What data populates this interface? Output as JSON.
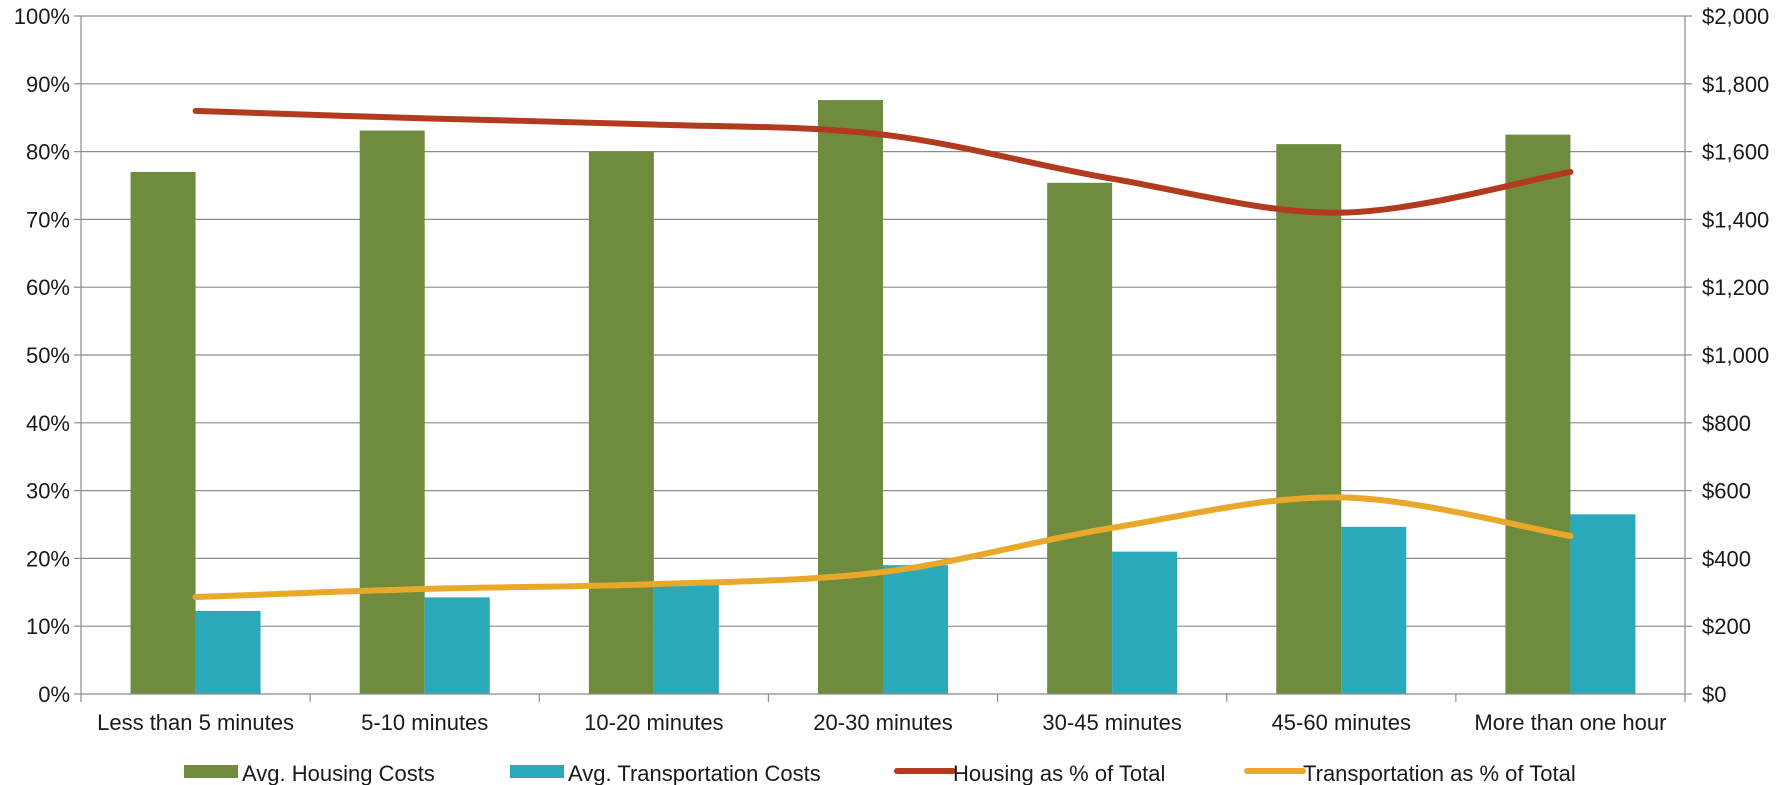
{
  "chart_data": {
    "type": "bar",
    "categories": [
      "Less than 5 minutes",
      "5-10 minutes",
      "10-20 minutes",
      "20-30 minutes",
      "30-45 minutes",
      "45-60 minutes",
      "More than one hour"
    ],
    "bar_series": [
      {
        "name": "Avg. Housing Costs",
        "color": "#6f8b3e",
        "axis": "right",
        "values": [
          1540,
          1662,
          1600,
          1752,
          1508,
          1622,
          1650
        ]
      },
      {
        "name": "Avg. Transportation Costs",
        "color": "#2aa9bb",
        "axis": "right",
        "values": [
          245,
          285,
          322,
          380,
          420,
          493,
          530
        ]
      }
    ],
    "line_series": [
      {
        "name": "Housing as % of Total",
        "color": "#b23a1f",
        "axis": "left",
        "values": [
          86,
          84.9,
          84,
          82.5,
          76,
          71,
          77
        ]
      },
      {
        "name": "Transportation as % of Total",
        "color": "#e9a82a",
        "axis": "left",
        "values": [
          14.3,
          15.5,
          16.2,
          18,
          24.5,
          29,
          23.3
        ]
      }
    ],
    "left_axis": {
      "min": 0,
      "max": 100,
      "ticks": [
        "0%",
        "10%",
        "20%",
        "30%",
        "40%",
        "50%",
        "60%",
        "70%",
        "80%",
        "90%",
        "100%"
      ]
    },
    "right_axis": {
      "min": 0,
      "max": 2000,
      "ticks": [
        "$0",
        "$200",
        "$400",
        "$600",
        "$800",
        "$1,000",
        "$1,200",
        "$1,400",
        "$1,600",
        "$1,800",
        "$2,000"
      ]
    },
    "grid": true,
    "legend": "bottom"
  }
}
